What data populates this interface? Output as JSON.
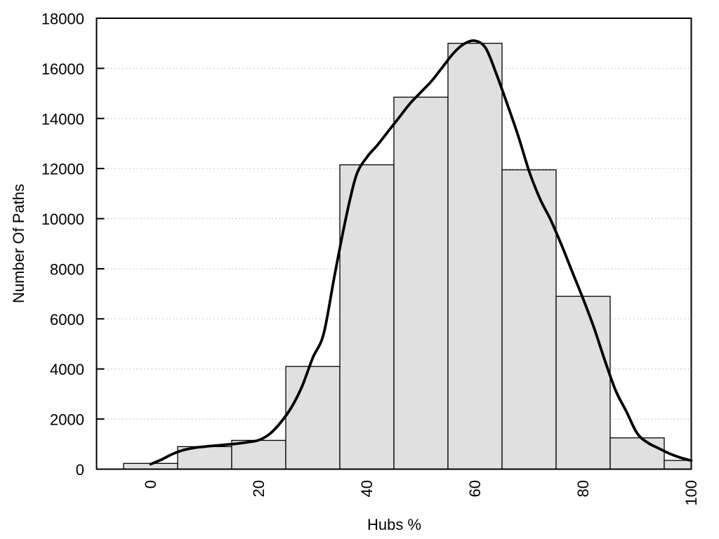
{
  "chart_data": {
    "type": "bar",
    "subtype": "histogram-with-density-curve",
    "title": "",
    "xlabel": "Hubs %",
    "ylabel": "Number Of Paths",
    "xlim": [
      -10,
      100
    ],
    "ylim": [
      0,
      18000
    ],
    "x_ticks": [
      0,
      20,
      40,
      60,
      80,
      100
    ],
    "x_tick_labels": [
      "0",
      "20",
      "40",
      "60",
      "80",
      "100"
    ],
    "x_tick_label_rotation_deg": -90,
    "y_ticks": [
      0,
      2000,
      4000,
      6000,
      8000,
      10000,
      12000,
      14000,
      16000,
      18000
    ],
    "y_tick_labels": [
      "0",
      "2000",
      "4000",
      "6000",
      "8000",
      "10000",
      "12000",
      "14000",
      "16000",
      "18000"
    ],
    "grid": "horizontal dotted lines at y ticks",
    "legend": "none",
    "bars": {
      "bin_width": 10,
      "bins": [
        {
          "x0": -5,
          "x1": 5,
          "count": 230
        },
        {
          "x0": 5,
          "x1": 15,
          "count": 900
        },
        {
          "x0": 15,
          "x1": 25,
          "count": 1150
        },
        {
          "x0": 25,
          "x1": 35,
          "count": 4100
        },
        {
          "x0": 35,
          "x1": 45,
          "count": 12150
        },
        {
          "x0": 45,
          "x1": 55,
          "count": 14850
        },
        {
          "x0": 55,
          "x1": 65,
          "count": 17000
        },
        {
          "x0": 65,
          "x1": 75,
          "count": 11950
        },
        {
          "x0": 75,
          "x1": 85,
          "count": 6900
        },
        {
          "x0": 85,
          "x1": 95,
          "count": 1250
        },
        {
          "x0": 95,
          "x1": 100,
          "count": 350
        }
      ]
    },
    "density_curve": {
      "points": [
        [
          0,
          200
        ],
        [
          2,
          380
        ],
        [
          4,
          600
        ],
        [
          6,
          760
        ],
        [
          8,
          850
        ],
        [
          10,
          900
        ],
        [
          12,
          940
        ],
        [
          14,
          980
        ],
        [
          16,
          1020
        ],
        [
          18,
          1080
        ],
        [
          20,
          1160
        ],
        [
          22,
          1400
        ],
        [
          24,
          1850
        ],
        [
          26,
          2450
        ],
        [
          28,
          3300
        ],
        [
          30,
          4450
        ],
        [
          32,
          5400
        ],
        [
          34,
          7700
        ],
        [
          36,
          9900
        ],
        [
          38,
          11700
        ],
        [
          40,
          12450
        ],
        [
          42,
          12950
        ],
        [
          44,
          13500
        ],
        [
          46,
          14050
        ],
        [
          48,
          14600
        ],
        [
          50,
          15050
        ],
        [
          52,
          15500
        ],
        [
          54,
          16050
        ],
        [
          56,
          16600
        ],
        [
          58,
          16980
        ],
        [
          60,
          17100
        ],
        [
          62,
          16800
        ],
        [
          64,
          15750
        ],
        [
          66,
          14550
        ],
        [
          68,
          13300
        ],
        [
          70,
          11900
        ],
        [
          72,
          10800
        ],
        [
          74,
          9950
        ],
        [
          76,
          8950
        ],
        [
          78,
          7870
        ],
        [
          80,
          6800
        ],
        [
          82,
          5650
        ],
        [
          84,
          4350
        ],
        [
          86,
          3150
        ],
        [
          88,
          2300
        ],
        [
          90,
          1430
        ],
        [
          92,
          1050
        ],
        [
          94,
          830
        ],
        [
          96,
          620
        ],
        [
          98,
          460
        ],
        [
          100,
          340
        ]
      ]
    },
    "colors": {
      "background": "#ffffff",
      "bar_fill": "#e0e0e0",
      "bar_edge": "#000000",
      "curve": "#000000",
      "grid": "#c8c8c8",
      "frame": "#000000",
      "text": "#000000"
    }
  }
}
